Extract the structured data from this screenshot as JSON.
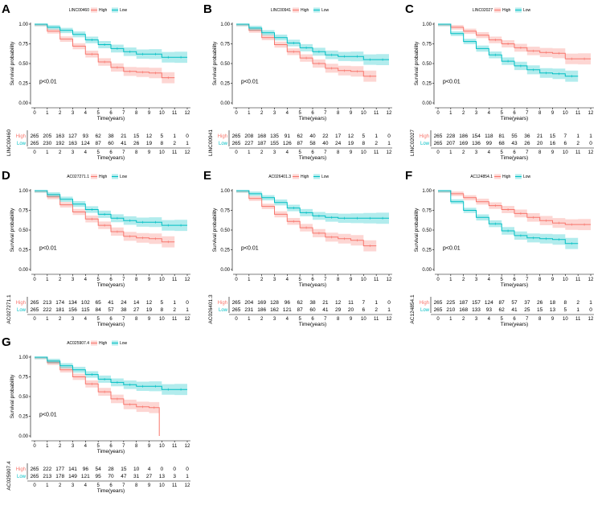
{
  "colors": {
    "high": "#F8766D",
    "low": "#00BFC4",
    "axis": "#000000"
  },
  "labels": {
    "xlabel": "Time(years)",
    "ylabel": "Survival probability",
    "high": "High",
    "low": "Low",
    "pvalue": "p<0.01",
    "high_row": "High",
    "low_row": "Low"
  },
  "chart_data": [
    {
      "type": "line",
      "letter": "A",
      "gene": "LINC00460",
      "xlim": [
        0,
        12
      ],
      "ylim": [
        0,
        1
      ],
      "x_ticks": [
        "0",
        "1",
        "2",
        "3",
        "4",
        "5",
        "6",
        "7",
        "8",
        "9",
        "10",
        "11",
        "12"
      ],
      "y_ticks": [
        "0.00",
        "0.25",
        "0.50",
        "0.75",
        "1.00"
      ],
      "series": [
        {
          "name": "High",
          "x": [
            0,
            1,
            2,
            3,
            4,
            5,
            6,
            7,
            8,
            9,
            10,
            11
          ],
          "values": [
            1.0,
            0.91,
            0.81,
            0.72,
            0.62,
            0.52,
            0.45,
            0.4,
            0.39,
            0.38,
            0.32,
            0.32
          ]
        },
        {
          "name": "Low",
          "x": [
            0,
            1,
            2,
            3,
            4,
            5,
            6,
            7,
            8,
            9,
            10,
            11,
            12
          ],
          "values": [
            1.0,
            0.96,
            0.92,
            0.87,
            0.8,
            0.74,
            0.69,
            0.65,
            0.62,
            0.62,
            0.58,
            0.58,
            0.58
          ]
        }
      ],
      "risk_table": {
        "high": [
          "265",
          "205",
          "163",
          "127",
          "93",
          "62",
          "38",
          "21",
          "15",
          "12",
          "5",
          "1",
          "0"
        ],
        "low": [
          "265",
          "230",
          "192",
          "163",
          "124",
          "87",
          "60",
          "41",
          "26",
          "19",
          "8",
          "2",
          "1"
        ]
      }
    },
    {
      "type": "line",
      "letter": "B",
      "gene": "LINC00941",
      "xlim": [
        0,
        12
      ],
      "ylim": [
        0,
        1
      ],
      "x_ticks": [
        "0",
        "1",
        "2",
        "3",
        "4",
        "5",
        "6",
        "7",
        "8",
        "9",
        "10",
        "11",
        "12"
      ],
      "y_ticks": [
        "0.00",
        "0.25",
        "0.50",
        "0.75",
        "1.00"
      ],
      "series": [
        {
          "name": "High",
          "x": [
            0,
            1,
            2,
            3,
            4,
            5,
            6,
            7,
            8,
            9,
            10,
            11
          ],
          "values": [
            1.0,
            0.92,
            0.83,
            0.74,
            0.65,
            0.57,
            0.5,
            0.44,
            0.41,
            0.4,
            0.34,
            0.34
          ]
        },
        {
          "name": "Low",
          "x": [
            0,
            1,
            2,
            3,
            4,
            5,
            6,
            7,
            8,
            9,
            10,
            11,
            12
          ],
          "values": [
            1.0,
            0.95,
            0.89,
            0.83,
            0.76,
            0.7,
            0.65,
            0.61,
            0.59,
            0.59,
            0.55,
            0.55,
            0.55
          ]
        }
      ],
      "risk_table": {
        "high": [
          "265",
          "208",
          "168",
          "135",
          "91",
          "62",
          "40",
          "22",
          "17",
          "12",
          "5",
          "1",
          "0"
        ],
        "low": [
          "265",
          "227",
          "187",
          "155",
          "126",
          "87",
          "58",
          "40",
          "24",
          "19",
          "8",
          "2",
          "1"
        ]
      }
    },
    {
      "type": "line",
      "letter": "C",
      "gene": "LINC02027",
      "xlim": [
        0,
        12
      ],
      "ylim": [
        0,
        1
      ],
      "x_ticks": [
        "0",
        "1",
        "2",
        "3",
        "4",
        "5",
        "6",
        "7",
        "8",
        "9",
        "10",
        "11",
        "12"
      ],
      "y_ticks": [
        "0.00",
        "0.25",
        "0.50",
        "0.75",
        "1.00"
      ],
      "series": [
        {
          "name": "High",
          "x": [
            0,
            1,
            2,
            3,
            4,
            5,
            6,
            7,
            8,
            9,
            10,
            11,
            12
          ],
          "values": [
            1.0,
            0.96,
            0.91,
            0.86,
            0.8,
            0.75,
            0.7,
            0.66,
            0.64,
            0.63,
            0.56,
            0.56,
            0.56
          ]
        },
        {
          "name": "Low",
          "x": [
            0,
            1,
            2,
            3,
            4,
            5,
            6,
            7,
            8,
            9,
            10,
            11
          ],
          "values": [
            1.0,
            0.88,
            0.78,
            0.69,
            0.61,
            0.53,
            0.47,
            0.42,
            0.38,
            0.37,
            0.34,
            0.34
          ]
        }
      ],
      "risk_table": {
        "high": [
          "265",
          "228",
          "186",
          "154",
          "118",
          "81",
          "55",
          "36",
          "21",
          "15",
          "7",
          "1",
          "1"
        ],
        "low": [
          "265",
          "207",
          "169",
          "136",
          "99",
          "68",
          "43",
          "26",
          "20",
          "16",
          "6",
          "2",
          "0"
        ]
      }
    },
    {
      "type": "line",
      "letter": "D",
      "gene": "AC027271.1",
      "xlim": [
        0,
        12
      ],
      "ylim": [
        0,
        1
      ],
      "x_ticks": [
        "0",
        "1",
        "2",
        "3",
        "4",
        "5",
        "6",
        "7",
        "8",
        "9",
        "10",
        "11",
        "12"
      ],
      "y_ticks": [
        "0.00",
        "0.25",
        "0.50",
        "0.75",
        "1.00"
      ],
      "series": [
        {
          "name": "High",
          "x": [
            0,
            1,
            2,
            3,
            4,
            5,
            6,
            7,
            8,
            9,
            10,
            11
          ],
          "values": [
            1.0,
            0.92,
            0.82,
            0.73,
            0.64,
            0.56,
            0.48,
            0.42,
            0.4,
            0.39,
            0.35,
            0.35
          ]
        },
        {
          "name": "Low",
          "x": [
            0,
            1,
            2,
            3,
            4,
            5,
            6,
            7,
            8,
            9,
            10,
            11,
            12
          ],
          "values": [
            1.0,
            0.95,
            0.89,
            0.83,
            0.76,
            0.7,
            0.65,
            0.62,
            0.6,
            0.6,
            0.56,
            0.56,
            0.56
          ]
        }
      ],
      "risk_table": {
        "high": [
          "265",
          "213",
          "174",
          "134",
          "102",
          "65",
          "41",
          "24",
          "14",
          "12",
          "5",
          "1",
          "0"
        ],
        "low": [
          "265",
          "222",
          "181",
          "156",
          "115",
          "84",
          "57",
          "38",
          "27",
          "19",
          "8",
          "2",
          "1"
        ]
      }
    },
    {
      "type": "line",
      "letter": "E",
      "gene": "AC026401.3",
      "xlim": [
        0,
        12
      ],
      "ylim": [
        0,
        1
      ],
      "x_ticks": [
        "0",
        "1",
        "2",
        "3",
        "4",
        "5",
        "6",
        "7",
        "8",
        "9",
        "10",
        "11",
        "12"
      ],
      "y_ticks": [
        "0.00",
        "0.25",
        "0.50",
        "0.75",
        "1.00"
      ],
      "series": [
        {
          "name": "High",
          "x": [
            0,
            1,
            2,
            3,
            4,
            5,
            6,
            7,
            8,
            9,
            10,
            11
          ],
          "values": [
            1.0,
            0.9,
            0.8,
            0.7,
            0.61,
            0.53,
            0.46,
            0.41,
            0.39,
            0.37,
            0.3,
            0.3
          ]
        },
        {
          "name": "Low",
          "x": [
            0,
            1,
            2,
            3,
            4,
            5,
            6,
            7,
            8,
            9,
            10,
            11,
            12
          ],
          "values": [
            1.0,
            0.96,
            0.91,
            0.85,
            0.78,
            0.72,
            0.68,
            0.66,
            0.65,
            0.65,
            0.65,
            0.65,
            0.65
          ]
        }
      ],
      "risk_table": {
        "high": [
          "265",
          "204",
          "169",
          "128",
          "96",
          "62",
          "38",
          "21",
          "12",
          "11",
          "7",
          "1",
          "0"
        ],
        "low": [
          "265",
          "231",
          "186",
          "162",
          "121",
          "87",
          "60",
          "41",
          "29",
          "20",
          "6",
          "2",
          "1"
        ]
      }
    },
    {
      "type": "line",
      "letter": "F",
      "gene": "AC124854.1",
      "xlim": [
        0,
        12
      ],
      "ylim": [
        0,
        1
      ],
      "x_ticks": [
        "0",
        "1",
        "2",
        "3",
        "4",
        "5",
        "6",
        "7",
        "8",
        "9",
        "10",
        "11",
        "12"
      ],
      "y_ticks": [
        "0.00",
        "0.25",
        "0.50",
        "0.75",
        "1.00"
      ],
      "series": [
        {
          "name": "High",
          "x": [
            0,
            1,
            2,
            3,
            4,
            5,
            6,
            7,
            8,
            9,
            10,
            11,
            12
          ],
          "values": [
            1.0,
            0.96,
            0.91,
            0.86,
            0.81,
            0.76,
            0.71,
            0.66,
            0.62,
            0.59,
            0.57,
            0.57,
            0.57
          ]
        },
        {
          "name": "Low",
          "x": [
            0,
            1,
            2,
            3,
            4,
            5,
            6,
            7,
            8,
            9,
            10,
            11
          ],
          "values": [
            1.0,
            0.86,
            0.75,
            0.66,
            0.58,
            0.49,
            0.43,
            0.4,
            0.39,
            0.38,
            0.33,
            0.33
          ]
        }
      ],
      "risk_table": {
        "high": [
          "265",
          "225",
          "187",
          "157",
          "124",
          "87",
          "57",
          "37",
          "26",
          "18",
          "8",
          "2",
          "1"
        ],
        "low": [
          "265",
          "210",
          "168",
          "133",
          "93",
          "62",
          "41",
          "25",
          "15",
          "13",
          "5",
          "1",
          "0"
        ]
      }
    },
    {
      "type": "line",
      "letter": "G",
      "gene": "AC025907.4",
      "xlim": [
        0,
        12
      ],
      "ylim": [
        0,
        1
      ],
      "x_ticks": [
        "0",
        "1",
        "2",
        "3",
        "4",
        "5",
        "6",
        "7",
        "8",
        "9",
        "10",
        "11",
        "12"
      ],
      "y_ticks": [
        "0.00",
        "0.25",
        "0.50",
        "0.75",
        "1.00"
      ],
      "series": [
        {
          "name": "High",
          "x": [
            0,
            1,
            2,
            3,
            4,
            5,
            6,
            7,
            8,
            9,
            9.8
          ],
          "values": [
            1.0,
            0.93,
            0.84,
            0.75,
            0.66,
            0.56,
            0.47,
            0.4,
            0.37,
            0.36,
            0.0
          ]
        },
        {
          "name": "Low",
          "x": [
            0,
            1,
            2,
            3,
            4,
            5,
            6,
            7,
            8,
            9,
            10,
            11,
            12
          ],
          "values": [
            1.0,
            0.95,
            0.89,
            0.84,
            0.78,
            0.72,
            0.68,
            0.65,
            0.63,
            0.63,
            0.59,
            0.59,
            0.59
          ]
        }
      ],
      "risk_table": {
        "high": [
          "265",
          "222",
          "177",
          "141",
          "96",
          "54",
          "28",
          "15",
          "10",
          "4",
          "0",
          "0",
          "0"
        ],
        "low": [
          "265",
          "213",
          "178",
          "149",
          "121",
          "95",
          "70",
          "47",
          "31",
          "27",
          "13",
          "3",
          "1"
        ]
      }
    }
  ]
}
